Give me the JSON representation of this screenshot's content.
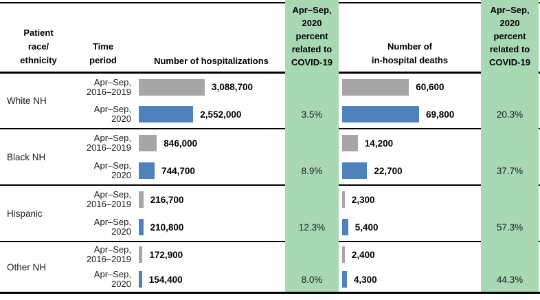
{
  "header": {
    "race": "Patient\nrace/\nethnicity",
    "time": "Time\nperiod",
    "hospitalizations": "Number of hospitalizations",
    "covid_pct": "Apr–Sep,\n2020\npercent\nrelated to\nCOVID-19",
    "deaths": "Number of\nin-hospital deaths"
  },
  "colors": {
    "highlight_green": "#a8d9b4",
    "bar_prior_gray": "#a6a6a6",
    "bar_2020_blue": "#4f81bd"
  },
  "chart_data": {
    "type": "bar",
    "orientation": "horizontal",
    "panels": [
      {
        "label": "Number of hospitalizations",
        "max_value": 3088700
      },
      {
        "label": "Number of in-hospital deaths",
        "max_value": 69800
      }
    ],
    "legend": "gray = Apr–Sep 2016–2019, blue = Apr–Sep 2020",
    "groups": [
      {
        "race": "White NH",
        "rows": [
          {
            "period": "Apr–Sep,\n2016–2019",
            "hospitalizations": 3088700,
            "hospitalizations_label": "3,088,700",
            "deaths": 60600,
            "deaths_label": "60,600",
            "pct_hosp": "",
            "pct_deaths": ""
          },
          {
            "period": "Apr–Sep,\n2020",
            "hospitalizations": 2552000,
            "hospitalizations_label": "2,552,000",
            "deaths": 69800,
            "deaths_label": "69,800",
            "pct_hosp": "3.5%",
            "pct_deaths": "20.3%"
          }
        ]
      },
      {
        "race": "Black NH",
        "rows": [
          {
            "period": "Apr–Sep,\n2016–2019",
            "hospitalizations": 846000,
            "hospitalizations_label": "846,000",
            "deaths": 14200,
            "deaths_label": "14,200",
            "pct_hosp": "",
            "pct_deaths": ""
          },
          {
            "period": "Apr–Sep,\n2020",
            "hospitalizations": 744700,
            "hospitalizations_label": "744,700",
            "deaths": 22700,
            "deaths_label": "22,700",
            "pct_hosp": "8.9%",
            "pct_deaths": "37.7%"
          }
        ]
      },
      {
        "race": "Hispanic",
        "rows": [
          {
            "period": "Apr–Sep,\n2016–2019",
            "hospitalizations": 216700,
            "hospitalizations_label": "216,700",
            "deaths": 2300,
            "deaths_label": "2,300",
            "pct_hosp": "",
            "pct_deaths": ""
          },
          {
            "period": "Apr–Sep,\n2020",
            "hospitalizations": 210800,
            "hospitalizations_label": "210,800",
            "deaths": 5400,
            "deaths_label": "5,400",
            "pct_hosp": "12.3%",
            "pct_deaths": "57.3%"
          }
        ]
      },
      {
        "race": "Other NH",
        "rows": [
          {
            "period": "Apr–Sep,\n2016–2019",
            "hospitalizations": 172900,
            "hospitalizations_label": "172,900",
            "deaths": 2400,
            "deaths_label": "2,400",
            "pct_hosp": "",
            "pct_deaths": ""
          },
          {
            "period": "Apr–Sep,\n2020",
            "hospitalizations": 154400,
            "hospitalizations_label": "154,400",
            "deaths": 4300,
            "deaths_label": "4,300",
            "pct_hosp": "8.0%",
            "pct_deaths": "44.3%"
          }
        ]
      }
    ]
  }
}
